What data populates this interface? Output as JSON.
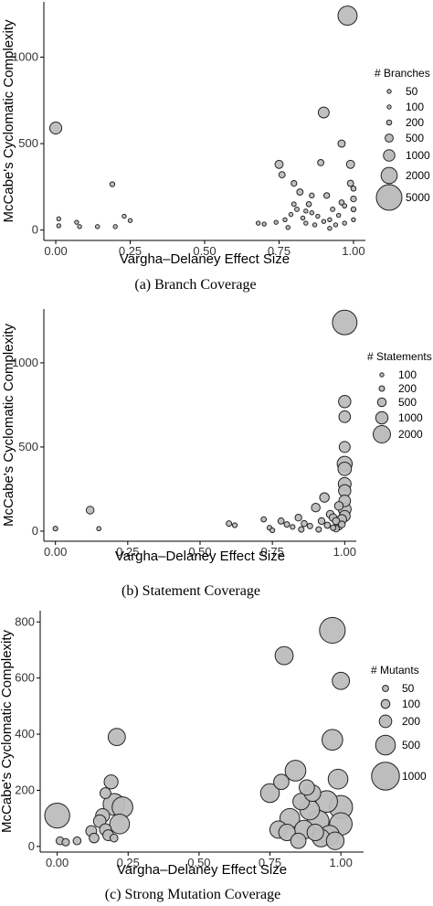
{
  "chart_data": [
    {
      "type": "scatter",
      "caption": "(a) Branch Coverage",
      "title": "",
      "xlabel": "Vargha–Delaney Effect Size",
      "ylabel": "McCabe's Cyclomatic Complexity",
      "xlim": [
        -0.04,
        1.04
      ],
      "ylim": [
        -60,
        1320
      ],
      "xticks": [
        "0.00",
        "0.25",
        "0.50",
        "0.75",
        "1.00"
      ],
      "yticks": [
        "0",
        "500",
        "1000"
      ],
      "legend": {
        "title": "# Branches",
        "placement": "right",
        "sizes": [
          50,
          100,
          200,
          500,
          1000,
          2000,
          5000
        ],
        "labels": [
          "50",
          "100",
          "200",
          "500",
          "1000",
          "2000",
          "5000"
        ]
      },
      "points": [
        {
          "x": 0.0,
          "y": 590,
          "size": 1100
        },
        {
          "x": 0.01,
          "y": 25,
          "size": 60
        },
        {
          "x": 0.01,
          "y": 65,
          "size": 70
        },
        {
          "x": 0.07,
          "y": 45,
          "size": 60
        },
        {
          "x": 0.08,
          "y": 20,
          "size": 50
        },
        {
          "x": 0.14,
          "y": 20,
          "size": 50
        },
        {
          "x": 0.19,
          "y": 265,
          "size": 180
        },
        {
          "x": 0.2,
          "y": 20,
          "size": 50
        },
        {
          "x": 0.23,
          "y": 80,
          "size": 70
        },
        {
          "x": 0.25,
          "y": 55,
          "size": 60
        },
        {
          "x": 0.68,
          "y": 40,
          "size": 60
        },
        {
          "x": 0.7,
          "y": 35,
          "size": 60
        },
        {
          "x": 0.74,
          "y": 45,
          "size": 70
        },
        {
          "x": 0.75,
          "y": 380,
          "size": 500
        },
        {
          "x": 0.76,
          "y": 320,
          "size": 300
        },
        {
          "x": 0.77,
          "y": 60,
          "size": 90
        },
        {
          "x": 0.78,
          "y": 15,
          "size": 60
        },
        {
          "x": 0.79,
          "y": 90,
          "size": 120
        },
        {
          "x": 0.8,
          "y": 270,
          "size": 250
        },
        {
          "x": 0.81,
          "y": 120,
          "size": 150
        },
        {
          "x": 0.82,
          "y": 220,
          "size": 300
        },
        {
          "x": 0.83,
          "y": 70,
          "size": 100
        },
        {
          "x": 0.84,
          "y": 40,
          "size": 80
        },
        {
          "x": 0.85,
          "y": 150,
          "size": 200
        },
        {
          "x": 0.86,
          "y": 100,
          "size": 120
        },
        {
          "x": 0.87,
          "y": 30,
          "size": 70
        },
        {
          "x": 0.88,
          "y": 80,
          "size": 100
        },
        {
          "x": 0.89,
          "y": 390,
          "size": 300
        },
        {
          "x": 0.9,
          "y": 680,
          "size": 900
        },
        {
          "x": 0.91,
          "y": 200,
          "size": 250
        },
        {
          "x": 0.92,
          "y": 60,
          "size": 90
        },
        {
          "x": 0.93,
          "y": 120,
          "size": 150
        },
        {
          "x": 0.94,
          "y": 30,
          "size": 80
        },
        {
          "x": 0.95,
          "y": 85,
          "size": 100
        },
        {
          "x": 0.96,
          "y": 160,
          "size": 200
        },
        {
          "x": 0.96,
          "y": 500,
          "size": 400
        },
        {
          "x": 0.97,
          "y": 40,
          "size": 80
        },
        {
          "x": 0.98,
          "y": 1240,
          "size": 2800
        },
        {
          "x": 0.99,
          "y": 380,
          "size": 500
        },
        {
          "x": 0.99,
          "y": 270,
          "size": 300
        },
        {
          "x": 1.0,
          "y": 180,
          "size": 250
        },
        {
          "x": 1.0,
          "y": 120,
          "size": 180
        },
        {
          "x": 1.0,
          "y": 60,
          "size": 120
        },
        {
          "x": 1.0,
          "y": 240,
          "size": 200
        },
        {
          "x": 0.97,
          "y": 140,
          "size": 150
        },
        {
          "x": 0.86,
          "y": 200,
          "size": 180
        },
        {
          "x": 0.8,
          "y": 150,
          "size": 150
        },
        {
          "x": 0.92,
          "y": 10,
          "size": 60
        },
        {
          "x": 0.84,
          "y": 110,
          "size": 100
        },
        {
          "x": 0.9,
          "y": 50,
          "size": 80
        }
      ]
    },
    {
      "type": "scatter",
      "caption": "(b) Statement Coverage",
      "title": "",
      "xlabel": "Vargha–Delaney Effect Size",
      "ylabel": "McCabe's Cyclomatic Complexity",
      "xlim": [
        -0.04,
        1.04
      ],
      "ylim": [
        -60,
        1320
      ],
      "xticks": [
        "0.00",
        "0.25",
        "0.50",
        "0.75",
        "1.00"
      ],
      "yticks": [
        "0",
        "500",
        "1000"
      ],
      "legend": {
        "title": "# Statements",
        "placement": "right",
        "sizes": [
          100,
          200,
          500,
          1000,
          2000
        ],
        "labels": [
          "100",
          "200",
          "500",
          "1000",
          "2000"
        ]
      },
      "points": [
        {
          "x": 0.0,
          "y": 15,
          "size": 150
        },
        {
          "x": 0.12,
          "y": 125,
          "size": 400
        },
        {
          "x": 0.15,
          "y": 15,
          "size": 120
        },
        {
          "x": 0.6,
          "y": 45,
          "size": 200
        },
        {
          "x": 0.62,
          "y": 35,
          "size": 150
        },
        {
          "x": 0.72,
          "y": 70,
          "size": 180
        },
        {
          "x": 0.74,
          "y": 20,
          "size": 150
        },
        {
          "x": 0.78,
          "y": 60,
          "size": 250
        },
        {
          "x": 0.8,
          "y": 40,
          "size": 200
        },
        {
          "x": 0.82,
          "y": 25,
          "size": 150
        },
        {
          "x": 0.84,
          "y": 80,
          "size": 300
        },
        {
          "x": 0.86,
          "y": 45,
          "size": 250
        },
        {
          "x": 0.88,
          "y": 30,
          "size": 200
        },
        {
          "x": 0.9,
          "y": 140,
          "size": 500
        },
        {
          "x": 0.92,
          "y": 60,
          "size": 300
        },
        {
          "x": 0.93,
          "y": 200,
          "size": 600
        },
        {
          "x": 0.94,
          "y": 35,
          "size": 250
        },
        {
          "x": 0.95,
          "y": 100,
          "size": 400
        },
        {
          "x": 0.96,
          "y": 20,
          "size": 200
        },
        {
          "x": 0.97,
          "y": 60,
          "size": 350
        },
        {
          "x": 0.98,
          "y": 150,
          "size": 500
        },
        {
          "x": 0.99,
          "y": 40,
          "size": 300
        },
        {
          "x": 1.0,
          "y": 1240,
          "size": 4000
        },
        {
          "x": 1.0,
          "y": 770,
          "size": 1000
        },
        {
          "x": 1.0,
          "y": 680,
          "size": 900
        },
        {
          "x": 1.0,
          "y": 500,
          "size": 800
        },
        {
          "x": 1.0,
          "y": 400,
          "size": 1500
        },
        {
          "x": 1.0,
          "y": 370,
          "size": 1200
        },
        {
          "x": 1.0,
          "y": 280,
          "size": 1100
        },
        {
          "x": 1.0,
          "y": 240,
          "size": 1000
        },
        {
          "x": 1.0,
          "y": 180,
          "size": 900
        },
        {
          "x": 1.0,
          "y": 130,
          "size": 1100
        },
        {
          "x": 1.0,
          "y": 90,
          "size": 800
        },
        {
          "x": 0.99,
          "y": 70,
          "size": 600
        },
        {
          "x": 0.98,
          "y": 30,
          "size": 400
        },
        {
          "x": 0.97,
          "y": 15,
          "size": 300
        },
        {
          "x": 0.85,
          "y": 10,
          "size": 200
        },
        {
          "x": 0.75,
          "y": 5,
          "size": 150
        },
        {
          "x": 0.91,
          "y": 10,
          "size": 200
        },
        {
          "x": 0.96,
          "y": 80,
          "size": 400
        }
      ]
    },
    {
      "type": "scatter",
      "caption": "(c) Strong Mutation Coverage",
      "title": "",
      "xlabel": "Vargha–Delaney Effect Size",
      "ylabel": "McCabe's Cyclomatic Complexity",
      "xlim": [
        -0.06,
        1.08
      ],
      "ylim": [
        -20,
        840
      ],
      "xticks": [
        "0.00",
        "0.25",
        "0.50",
        "0.75",
        "1.00"
      ],
      "yticks": [
        "0",
        "200",
        "400",
        "600",
        "800"
      ],
      "legend": {
        "title": "# Mutants",
        "placement": "right",
        "sizes": [
          50,
          100,
          200,
          500,
          1000
        ],
        "labels": [
          "50",
          "100",
          "200",
          "500",
          "1000"
        ]
      },
      "points": [
        {
          "x": 0.0,
          "y": 110,
          "size": 800
        },
        {
          "x": 0.01,
          "y": 20,
          "size": 80
        },
        {
          "x": 0.03,
          "y": 15,
          "size": 70
        },
        {
          "x": 0.07,
          "y": 20,
          "size": 80
        },
        {
          "x": 0.12,
          "y": 55,
          "size": 150
        },
        {
          "x": 0.13,
          "y": 30,
          "size": 120
        },
        {
          "x": 0.15,
          "y": 90,
          "size": 200
        },
        {
          "x": 0.16,
          "y": 110,
          "size": 250
        },
        {
          "x": 0.17,
          "y": 60,
          "size": 180
        },
        {
          "x": 0.18,
          "y": 40,
          "size": 150
        },
        {
          "x": 0.19,
          "y": 230,
          "size": 250
        },
        {
          "x": 0.2,
          "y": 150,
          "size": 600
        },
        {
          "x": 0.21,
          "y": 390,
          "size": 380
        },
        {
          "x": 0.22,
          "y": 80,
          "size": 500
        },
        {
          "x": 0.23,
          "y": 140,
          "size": 550
        },
        {
          "x": 0.2,
          "y": 30,
          "size": 80
        },
        {
          "x": 0.17,
          "y": 190,
          "size": 150
        },
        {
          "x": 0.75,
          "y": 190,
          "size": 450
        },
        {
          "x": 0.79,
          "y": 230,
          "size": 300
        },
        {
          "x": 0.8,
          "y": 680,
          "size": 420
        },
        {
          "x": 0.82,
          "y": 100,
          "size": 500
        },
        {
          "x": 0.84,
          "y": 270,
          "size": 550
        },
        {
          "x": 0.86,
          "y": 160,
          "size": 350
        },
        {
          "x": 0.87,
          "y": 60,
          "size": 450
        },
        {
          "x": 0.89,
          "y": 130,
          "size": 500
        },
        {
          "x": 0.9,
          "y": 190,
          "size": 350
        },
        {
          "x": 0.92,
          "y": 90,
          "size": 600
        },
        {
          "x": 0.93,
          "y": 30,
          "size": 400
        },
        {
          "x": 0.95,
          "y": 160,
          "size": 600
        },
        {
          "x": 0.97,
          "y": 770,
          "size": 850
        },
        {
          "x": 0.97,
          "y": 380,
          "size": 550
        },
        {
          "x": 0.99,
          "y": 240,
          "size": 500
        },
        {
          "x": 1.0,
          "y": 590,
          "size": 380
        },
        {
          "x": 1.0,
          "y": 140,
          "size": 700
        },
        {
          "x": 1.0,
          "y": 80,
          "size": 650
        },
        {
          "x": 0.98,
          "y": 20,
          "size": 400
        },
        {
          "x": 0.81,
          "y": 50,
          "size": 350
        },
        {
          "x": 0.85,
          "y": 20,
          "size": 300
        },
        {
          "x": 0.91,
          "y": 50,
          "size": 350
        },
        {
          "x": 0.96,
          "y": 40,
          "size": 500
        },
        {
          "x": 0.78,
          "y": 60,
          "size": 380
        },
        {
          "x": 0.88,
          "y": 210,
          "size": 300
        }
      ]
    }
  ]
}
